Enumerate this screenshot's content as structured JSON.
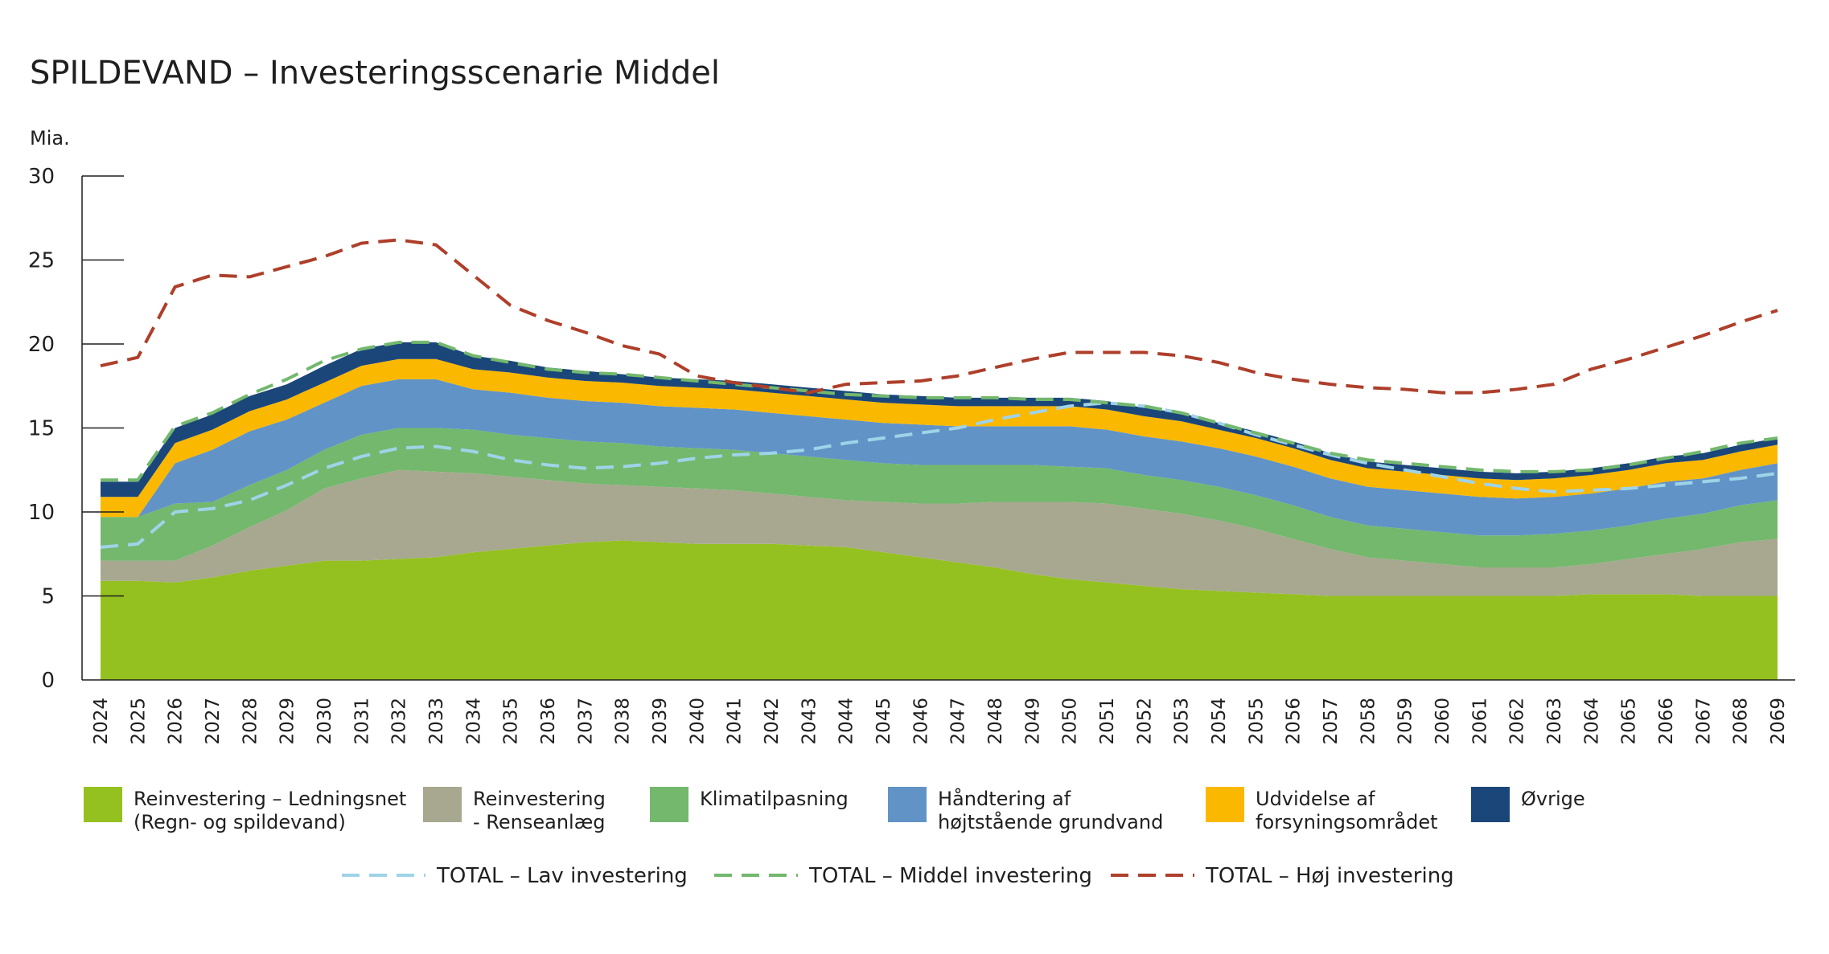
{
  "chart_data": {
    "type": "area",
    "title": "SPILDEVAND – Investeringsscenarie Middel",
    "ylabel": "Mia.",
    "xlabel": "",
    "ylim": [
      0,
      30
    ],
    "yticks": [
      0,
      5,
      10,
      15,
      20,
      25,
      30
    ],
    "stacked": true,
    "grid": false,
    "legend_position": "bottom",
    "x": [
      2024,
      2025,
      2026,
      2027,
      2028,
      2029,
      2030,
      2031,
      2032,
      2033,
      2034,
      2035,
      2036,
      2037,
      2038,
      2039,
      2040,
      2041,
      2042,
      2043,
      2044,
      2045,
      2046,
      2047,
      2048,
      2049,
      2050,
      2051,
      2052,
      2053,
      2054,
      2055,
      2056,
      2057,
      2058,
      2059,
      2060,
      2061,
      2062,
      2063,
      2064,
      2065,
      2066,
      2067,
      2068,
      2069
    ],
    "series": [
      {
        "name": "Reinvestering – Ledningsnet\n(Regn- og spildevand)",
        "color": "#94c11f",
        "values": [
          5.9,
          5.9,
          5.8,
          6.1,
          6.5,
          6.8,
          7.1,
          7.1,
          7.2,
          7.3,
          7.6,
          7.8,
          8.0,
          8.2,
          8.3,
          8.2,
          8.1,
          8.1,
          8.1,
          8.0,
          7.9,
          7.6,
          7.3,
          7.0,
          6.7,
          6.3,
          6.0,
          5.8,
          5.6,
          5.4,
          5.3,
          5.2,
          5.1,
          5.0,
          5.0,
          5.0,
          5.0,
          5.0,
          5.0,
          5.0,
          5.1,
          5.1,
          5.1,
          5.0,
          5.0,
          5.0
        ]
      },
      {
        "name": "Reinvestering\n- Renseanlæg",
        "color": "#a7a88f",
        "values": [
          1.2,
          1.2,
          1.3,
          1.9,
          2.6,
          3.3,
          4.3,
          4.9,
          5.3,
          5.1,
          4.7,
          4.3,
          3.9,
          3.5,
          3.3,
          3.3,
          3.3,
          3.2,
          3.0,
          2.9,
          2.8,
          3.0,
          3.2,
          3.5,
          3.9,
          4.3,
          4.6,
          4.7,
          4.6,
          4.5,
          4.2,
          3.8,
          3.3,
          2.8,
          2.3,
          2.1,
          1.9,
          1.7,
          1.7,
          1.7,
          1.8,
          2.1,
          2.4,
          2.8,
          3.2,
          3.4
        ]
      },
      {
        "name": "Klimatilpasning",
        "color": "#73b86d",
        "values": [
          2.6,
          2.6,
          3.4,
          2.6,
          2.5,
          2.4,
          2.3,
          2.6,
          2.5,
          2.6,
          2.6,
          2.5,
          2.5,
          2.5,
          2.5,
          2.4,
          2.4,
          2.4,
          2.4,
          2.4,
          2.4,
          2.3,
          2.3,
          2.3,
          2.2,
          2.2,
          2.1,
          2.1,
          2.0,
          2.0,
          2.0,
          2.0,
          2.0,
          1.9,
          1.9,
          1.9,
          1.9,
          1.9,
          1.9,
          2.0,
          2.0,
          2.0,
          2.1,
          2.1,
          2.2,
          2.3
        ]
      },
      {
        "name": "Håndtering af\nhøjtstående grundvand",
        "color": "#6193c6",
        "values": [
          0.0,
          0.0,
          2.4,
          3.1,
          3.2,
          3.0,
          2.8,
          2.9,
          2.9,
          2.9,
          2.4,
          2.5,
          2.4,
          2.4,
          2.4,
          2.4,
          2.4,
          2.4,
          2.4,
          2.4,
          2.4,
          2.4,
          2.4,
          2.3,
          2.3,
          2.3,
          2.4,
          2.3,
          2.3,
          2.3,
          2.3,
          2.3,
          2.3,
          2.3,
          2.3,
          2.3,
          2.3,
          2.3,
          2.2,
          2.2,
          2.2,
          2.2,
          2.2,
          2.1,
          2.1,
          2.2
        ]
      },
      {
        "name": "Udvidelse af\nforsyningsområdet",
        "color": "#fbb800",
        "values": [
          1.2,
          1.2,
          1.2,
          1.2,
          1.2,
          1.2,
          1.2,
          1.2,
          1.2,
          1.2,
          1.2,
          1.2,
          1.2,
          1.2,
          1.2,
          1.2,
          1.2,
          1.2,
          1.2,
          1.2,
          1.2,
          1.2,
          1.2,
          1.2,
          1.2,
          1.2,
          1.2,
          1.2,
          1.2,
          1.2,
          1.1,
          1.1,
          1.1,
          1.1,
          1.1,
          1.1,
          1.1,
          1.1,
          1.1,
          1.1,
          1.1,
          1.1,
          1.1,
          1.1,
          1.1,
          1.1
        ]
      },
      {
        "name": "Øvrige",
        "color": "#1b4679",
        "values": [
          0.9,
          0.9,
          0.9,
          0.9,
          0.9,
          0.9,
          1.0,
          1.0,
          1.0,
          1.0,
          0.8,
          0.7,
          0.6,
          0.6,
          0.5,
          0.5,
          0.5,
          0.5,
          0.5,
          0.5,
          0.5,
          0.5,
          0.5,
          0.5,
          0.5,
          0.5,
          0.5,
          0.5,
          0.5,
          0.5,
          0.4,
          0.4,
          0.4,
          0.4,
          0.4,
          0.4,
          0.4,
          0.4,
          0.4,
          0.4,
          0.4,
          0.4,
          0.4,
          0.4,
          0.4,
          0.4
        ]
      }
    ],
    "lines": [
      {
        "name": "TOTAL – Lav investering",
        "color": "#9fd3e8",
        "values": [
          7.9,
          8.1,
          10.0,
          10.2,
          10.7,
          11.6,
          12.6,
          13.3,
          13.8,
          13.9,
          13.6,
          13.1,
          12.8,
          12.6,
          12.7,
          12.9,
          13.2,
          13.4,
          13.5,
          13.7,
          14.1,
          14.4,
          14.7,
          15.0,
          15.5,
          15.9,
          16.3,
          16.5,
          16.3,
          15.9,
          15.3,
          14.6,
          14.0,
          13.4,
          12.9,
          12.5,
          12.1,
          11.7,
          11.4,
          11.2,
          11.3,
          11.4,
          11.6,
          11.8,
          12.0,
          12.3
        ]
      },
      {
        "name": "TOTAL – Middel investering",
        "color": "#73b86d",
        "values": [
          11.9,
          11.9,
          15.1,
          15.9,
          17.0,
          17.9,
          19.0,
          19.7,
          20.1,
          20.1,
          19.3,
          18.9,
          18.5,
          18.3,
          18.2,
          18.0,
          17.8,
          17.6,
          17.4,
          17.2,
          17.0,
          16.9,
          16.8,
          16.8,
          16.8,
          16.7,
          16.7,
          16.5,
          16.3,
          15.9,
          15.3,
          14.7,
          14.1,
          13.5,
          13.1,
          12.9,
          12.7,
          12.5,
          12.4,
          12.4,
          12.5,
          12.8,
          13.2,
          13.6,
          14.1,
          14.4
        ]
      },
      {
        "name": "TOTAL – Høj investering",
        "color": "#ae3f2b",
        "values": [
          18.7,
          19.2,
          23.4,
          24.1,
          24.0,
          24.6,
          25.2,
          26.0,
          26.2,
          25.9,
          24.1,
          22.3,
          21.4,
          20.7,
          19.9,
          19.4,
          18.1,
          17.7,
          17.4,
          17.1,
          17.6,
          17.7,
          17.8,
          18.1,
          18.6,
          19.1,
          19.5,
          19.5,
          19.5,
          19.3,
          18.9,
          18.3,
          17.9,
          17.6,
          17.4,
          17.3,
          17.1,
          17.1,
          17.3,
          17.6,
          18.5,
          19.1,
          19.8,
          20.5,
          21.3,
          22.0
        ]
      }
    ]
  }
}
